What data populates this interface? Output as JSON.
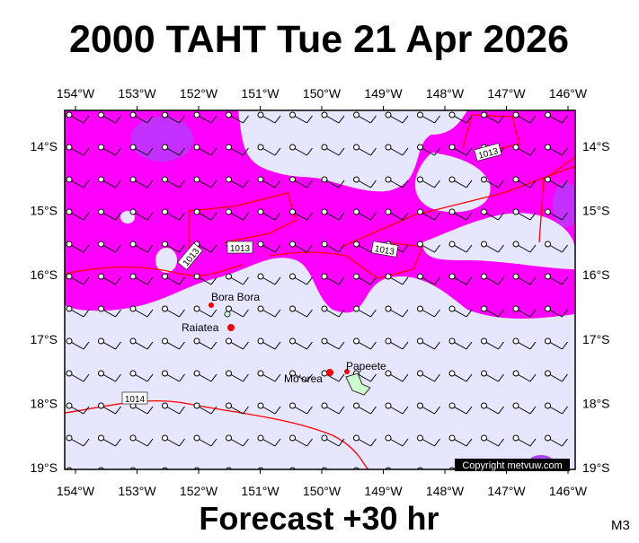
{
  "title": "2000 TAHT Tue 21 Apr 2026",
  "footer": "Forecast +30 hr",
  "corner_code": "M3",
  "copyright": "Copyright metvuw.com",
  "longitude_labels": [
    "154°W",
    "153°W",
    "152°W",
    "151°W",
    "150°W",
    "149°W",
    "148°W",
    "147°W",
    "146°W"
  ],
  "latitude_labels": [
    "14°S",
    "15°S",
    "16°S",
    "17°S",
    "18°S",
    "19°S"
  ],
  "places": [
    "Bora Bora",
    "Raiatea",
    "Mo'orea",
    "Papeete"
  ],
  "isobar_labels": [
    "1013",
    "1013",
    "1013",
    "1013",
    "1014"
  ]
}
